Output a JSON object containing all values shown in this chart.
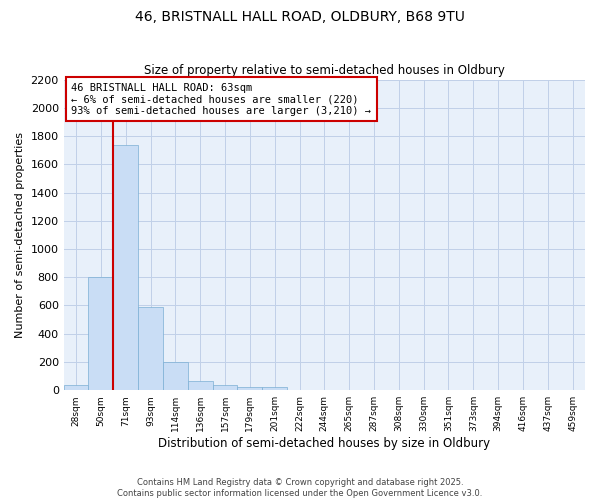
{
  "title": "46, BRISTNALL HALL ROAD, OLDBURY, B68 9TU",
  "subtitle": "Size of property relative to semi-detached houses in Oldbury",
  "xlabel": "Distribution of semi-detached houses by size in Oldbury",
  "ylabel": "Number of semi-detached properties",
  "categories": [
    "28sqm",
    "50sqm",
    "71sqm",
    "93sqm",
    "114sqm",
    "136sqm",
    "157sqm",
    "179sqm",
    "201sqm",
    "222sqm",
    "244sqm",
    "265sqm",
    "287sqm",
    "308sqm",
    "330sqm",
    "351sqm",
    "373sqm",
    "394sqm",
    "416sqm",
    "437sqm",
    "459sqm"
  ],
  "bar_values": [
    40,
    800,
    1740,
    590,
    200,
    65,
    35,
    25,
    20,
    0,
    0,
    0,
    0,
    0,
    0,
    0,
    0,
    0,
    0,
    0,
    0
  ],
  "bar_color": "#c9ddf5",
  "bar_edge_color": "#7bafd4",
  "ylim": [
    0,
    2200
  ],
  "vline_color": "#cc0000",
  "annotation_text": "46 BRISTNALL HALL ROAD: 63sqm\n← 6% of semi-detached houses are smaller (220)\n93% of semi-detached houses are larger (3,210) →",
  "annotation_box_color": "#cc0000",
  "grid_color": "#c0d0e8",
  "bg_color": "#e8f0fa",
  "footer": "Contains HM Land Registry data © Crown copyright and database right 2025.\nContains public sector information licensed under the Open Government Licence v3.0.",
  "title_fontsize": 10,
  "subtitle_fontsize": 8.5
}
